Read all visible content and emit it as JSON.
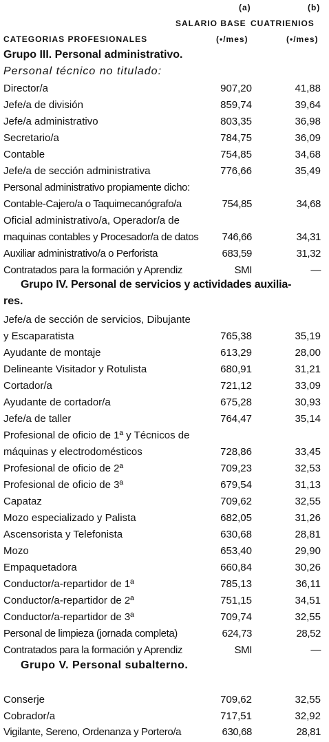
{
  "header": {
    "col_a_mark": "(a)",
    "col_b_mark": "(b)",
    "col_a_title": "SALARIO BASE",
    "col_b_title": "CUATRIENIOS",
    "categories_title": "CATEGORIAS PROFESIONALES",
    "col_a_unit": "(•/mes)",
    "col_b_unit": "(•/mes)"
  },
  "groups": {
    "g3": "Grupo III. Personal administrativo.",
    "g3_sub": "Personal técnico no titulado:",
    "g4_line1": "Grupo IV. Personal de servicios y actividades auxilia-",
    "g4_line2": "res.",
    "g5": "Grupo V. Personal subalterno."
  },
  "rows": [
    {
      "label": "Director/a",
      "a": "907,20",
      "b": "41,88"
    },
    {
      "label": "Jefe/a de división",
      "a": "859,74",
      "b": "39,64"
    },
    {
      "label": "Jefe/a administrativo",
      "a": "803,35",
      "b": "36,98"
    },
    {
      "label": "Secretario/a",
      "a": "784,75",
      "b": "36,09"
    },
    {
      "label": "Contable",
      "a": "754,85",
      "b": "34,68"
    },
    {
      "label": "Jefe/a de sección administrativa",
      "a": "776,66",
      "b": "35,49"
    },
    {
      "label": "Personal administrativo propiamente dicho:",
      "a": "",
      "b": ""
    },
    {
      "label": "Contable-Cajero/a o Taquimecanógrafo/a",
      "a": "754,85",
      "b": "34,68"
    },
    {
      "label": "Oficial administrativo/a,  Operador/a de",
      "a": "",
      "b": ""
    },
    {
      "label": "maquinas contables y Procesador/a de datos",
      "a": "746,66",
      "b": "34,31"
    },
    {
      "label": "Auxiliar administrativo/a o Perforista",
      "a": "683,59",
      "b": "31,32"
    },
    {
      "label": "Contratados para la formación y Aprendiz",
      "a": "SMI",
      "b": "—"
    },
    {
      "label": "Jefe/a de sección de servicios, Dibujante",
      "a": "",
      "b": ""
    },
    {
      "label": "y Escaparatista",
      "a": "765,38",
      "b": "35,19"
    },
    {
      "label": "Ayudante de montaje",
      "a": "613,29",
      "b": "28,00"
    },
    {
      "label": "Delineante Visitador y Rotulista",
      "a": "680,91",
      "b": "31,21"
    },
    {
      "label": "Cortador/a",
      "a": "721,12",
      "b": "33,09"
    },
    {
      "label": "Ayudante de cortador/a",
      "a": "675,28",
      "b": "30,93"
    },
    {
      "label": "Jefe/a de taller",
      "a": "764,47",
      "b": "35,14"
    },
    {
      "label": "Profesional de oficio de 1ª y Técnicos de",
      "a": "",
      "b": ""
    },
    {
      "label": "máquinas y electrodomésticos",
      "a": "728,86",
      "b": "33,45"
    },
    {
      "label": "Profesional de oficio de 2ª",
      "a": "709,23",
      "b": "32,53"
    },
    {
      "label": "Profesional de oficio de 3ª",
      "a": "679,54",
      "b": "31,13"
    },
    {
      "label": "Capataz",
      "a": "709,62",
      "b": "32,55"
    },
    {
      "label": "Mozo especializado y Palista",
      "a": "682,05",
      "b": "31,26"
    },
    {
      "label": "Ascensorista y Telefonista",
      "a": "630,68",
      "b": "28,81"
    },
    {
      "label": "Mozo",
      "a": "653,40",
      "b": "29,90"
    },
    {
      "label": "Empaquetadora",
      "a": "660,84",
      "b": "30,26"
    },
    {
      "label": "Conductor/a-repartidor de 1ª",
      "a": "785,13",
      "b": "36,11"
    },
    {
      "label": "Conductor/a-repartidor de 2ª",
      "a": "751,15",
      "b": "34,51"
    },
    {
      "label": "Conductor/a-repartidor de 3ª",
      "a": "709,74",
      "b": "32,55"
    },
    {
      "label": "Personal de limpieza (jornada completa)",
      "a": "624,73",
      "b": "28,52"
    },
    {
      "label": "Contratados para la formación y Aprendiz",
      "a": "SMI",
      "b": "—"
    },
    {
      "label": "Conserje",
      "a": "709,62",
      "b": "32,55"
    },
    {
      "label": "Cobrador/a",
      "a": "717,51",
      "b": "32,92"
    },
    {
      "label": "Vigilante, Sereno, Ordenanza y Portero/a",
      "a": "630,68",
      "b": "28,81"
    }
  ]
}
